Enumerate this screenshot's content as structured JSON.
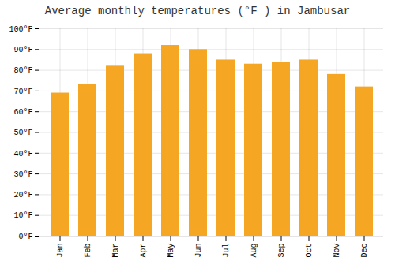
{
  "chart_data": {
    "type": "bar",
    "title": "Average monthly temperatures (°F ) in Jambusar",
    "categories": [
      "Jan",
      "Feb",
      "Mar",
      "Apr",
      "May",
      "Jun",
      "Jul",
      "Aug",
      "Sep",
      "Oct",
      "Nov",
      "Dec"
    ],
    "values": [
      69,
      73,
      82,
      88,
      92,
      90,
      85,
      83,
      84,
      85,
      78,
      72
    ],
    "color": "#F5A623",
    "ylim": [
      0,
      100
    ],
    "yticks": [
      {
        "value": 0,
        "label": "0°F"
      },
      {
        "value": 10,
        "label": "10°F"
      },
      {
        "value": 20,
        "label": "20°F"
      },
      {
        "value": 30,
        "label": "30°F"
      },
      {
        "value": 40,
        "label": "40°F"
      },
      {
        "value": 50,
        "label": "50°F"
      },
      {
        "value": 60,
        "label": "60°F"
      },
      {
        "value": 70,
        "label": "70°F"
      },
      {
        "value": 80,
        "label": "80°F"
      },
      {
        "value": 90,
        "label": "90°F"
      },
      {
        "value": 100,
        "label": "100°F"
      }
    ],
    "grid": true
  }
}
